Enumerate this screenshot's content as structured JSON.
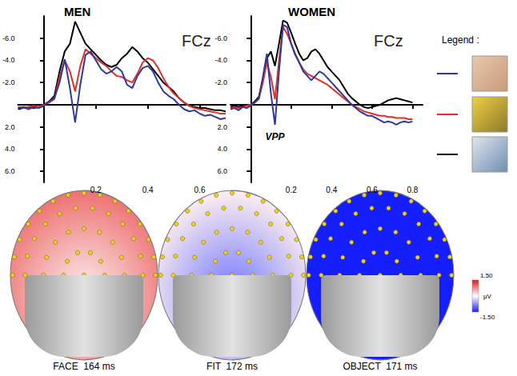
{
  "chart_data": [
    {
      "type": "line",
      "title": "MEN",
      "subtitle": "FCz",
      "x": [
        -0.1,
        -0.08,
        -0.06,
        -0.04,
        -0.02,
        0,
        0.02,
        0.04,
        0.06,
        0.08,
        0.1,
        0.12,
        0.14,
        0.16,
        0.18,
        0.2,
        0.22,
        0.24,
        0.26,
        0.28,
        0.3,
        0.32,
        0.34,
        0.36,
        0.38,
        0.4,
        0.42,
        0.44,
        0.46,
        0.48,
        0.5,
        0.52,
        0.54,
        0.56,
        0.58,
        0.6,
        0.62,
        0.64,
        0.66,
        0.68,
        0.7
      ],
      "series": [
        {
          "color": "#2e3a99",
          "values": [
            0.3,
            0.2,
            0.4,
            0.2,
            0.3,
            0.1,
            -0.3,
            -0.6,
            -2.0,
            -4.1,
            -1.5,
            1.6,
            -1.8,
            -4.5,
            -4.8,
            -4.0,
            -3.2,
            -2.8,
            -3.0,
            -3.4,
            -3.0,
            -1.8,
            -1.5,
            -2.6,
            -3.3,
            -3.5,
            -3.0,
            -2.0,
            -1.2,
            -0.8,
            -0.5,
            0.0,
            0.4,
            0.6,
            0.5,
            0.8,
            1.0,
            0.9,
            1.1,
            1.3,
            1.2
          ]
        },
        {
          "color": "#e0302a",
          "values": [
            0.2,
            0.3,
            0.2,
            0.1,
            0.2,
            0.0,
            -0.2,
            -0.5,
            -2.5,
            -4.0,
            -3.0,
            -1.2,
            -3.5,
            -5.0,
            -4.6,
            -4.2,
            -3.8,
            -3.5,
            -3.0,
            -2.6,
            -2.5,
            -2.2,
            -2.0,
            -2.8,
            -3.8,
            -4.2,
            -4.0,
            -3.3,
            -2.4,
            -1.6,
            -1.0,
            -0.6,
            -0.2,
            0.1,
            0.3,
            0.4,
            0.5,
            0.6,
            0.7,
            0.8,
            0.8
          ]
        },
        {
          "color": "#000000",
          "values": [
            0.4,
            0.3,
            0.2,
            0.3,
            0.2,
            0.0,
            -0.3,
            -0.8,
            -3.0,
            -4.8,
            -5.5,
            -7.5,
            -6.5,
            -5.5,
            -5.0,
            -4.5,
            -4.0,
            -3.6,
            -3.4,
            -3.6,
            -4.2,
            -4.6,
            -5.2,
            -4.8,
            -4.2,
            -3.8,
            -3.2,
            -2.6,
            -2.0,
            -1.6,
            -1.2,
            -0.6,
            -0.2,
            0.1,
            0.2,
            0.3,
            0.3,
            0.4,
            0.5,
            0.5,
            0.6
          ]
        }
      ],
      "xlim": [
        -0.1,
        0.7
      ],
      "xticks": [
        0.2,
        0.4,
        0.6
      ],
      "ylim": [
        -8,
        7
      ],
      "yticks": [
        {
          "value": -6,
          "label": "-6.0"
        },
        {
          "value": -4,
          "label": "-4.0"
        },
        {
          "value": -2,
          "label": "-2.0"
        },
        {
          "value": 2,
          "label": "2.0"
        },
        {
          "value": 4,
          "label": "4.0"
        },
        {
          "value": 6,
          "label": "6.0"
        }
      ],
      "grid": false
    },
    {
      "type": "line",
      "title": "WOMEN",
      "subtitle": "FCz",
      "x": [
        -0.1,
        -0.08,
        -0.06,
        -0.04,
        -0.02,
        0,
        0.02,
        0.04,
        0.06,
        0.08,
        0.1,
        0.12,
        0.14,
        0.16,
        0.18,
        0.2,
        0.22,
        0.24,
        0.26,
        0.28,
        0.3,
        0.32,
        0.34,
        0.36,
        0.38,
        0.4,
        0.42,
        0.44,
        0.46,
        0.48,
        0.5,
        0.52,
        0.54,
        0.56,
        0.58,
        0.6,
        0.62,
        0.64,
        0.66,
        0.68,
        0.7,
        0.72,
        0.74,
        0.76,
        0.78,
        0.8
      ],
      "series": [
        {
          "color": "#2e3a99",
          "values": [
            0.4,
            0.3,
            0.5,
            0.2,
            0.3,
            0.1,
            -0.2,
            -0.6,
            -2.5,
            -4.6,
            -1.0,
            1.8,
            -3.0,
            -7.2,
            -7.0,
            -5.5,
            -4.5,
            -3.8,
            -3.0,
            -2.6,
            -2.2,
            -2.6,
            -3.0,
            -2.8,
            -2.4,
            -2.0,
            -1.6,
            -1.2,
            -0.8,
            -0.4,
            0.0,
            0.3,
            0.6,
            0.8,
            1.0,
            1.0,
            1.2,
            1.4,
            1.6,
            1.5,
            1.6,
            1.8,
            1.6,
            1.5,
            1.6,
            1.5
          ]
        },
        {
          "color": "#e0302a",
          "values": [
            0.3,
            0.2,
            0.3,
            0.2,
            0.1,
            0.0,
            -0.2,
            -0.5,
            -2.0,
            -3.8,
            -2.5,
            -0.5,
            -4.0,
            -7.0,
            -6.4,
            -5.5,
            -4.6,
            -3.8,
            -3.2,
            -2.8,
            -2.6,
            -2.4,
            -2.2,
            -2.0,
            -1.8,
            -1.5,
            -1.2,
            -0.9,
            -0.6,
            -0.3,
            0.0,
            0.2,
            0.4,
            0.6,
            0.7,
            0.8,
            0.9,
            1.0,
            1.0,
            1.1,
            1.1,
            1.2,
            1.2,
            1.2,
            1.3,
            1.3
          ]
        },
        {
          "color": "#000000",
          "values": [
            0.2,
            0.1,
            0.2,
            0.1,
            0.1,
            0.0,
            -0.3,
            -0.7,
            -2.2,
            -4.2,
            -4.8,
            -3.5,
            -5.5,
            -7.6,
            -7.4,
            -6.5,
            -5.5,
            -4.6,
            -4.0,
            -4.2,
            -4.8,
            -5.0,
            -4.6,
            -4.0,
            -3.4,
            -3.0,
            -2.6,
            -2.2,
            -1.6,
            -1.0,
            -0.6,
            -0.3,
            0.0,
            0.2,
            0.3,
            0.2,
            0.1,
            0.0,
            -0.2,
            -0.4,
            -0.5,
            -0.6,
            -0.5,
            -0.4,
            -0.3,
            -0.2
          ]
        }
      ],
      "xlim": [
        -0.1,
        0.85
      ],
      "xticks": [
        0.2,
        0.4,
        0.6,
        0.8
      ],
      "ylim": [
        -8,
        7
      ],
      "yticks": [
        {
          "value": -6,
          "label": "-6.0"
        },
        {
          "value": -4,
          "label": "-4.0"
        },
        {
          "value": -2,
          "label": "-2.0"
        },
        {
          "value": 2,
          "label": "2.0"
        },
        {
          "value": 4,
          "label": "4.0"
        },
        {
          "value": 6,
          "label": "6.0"
        }
      ],
      "grid": false,
      "annotations": [
        {
          "text": "VPP",
          "x": 0.12,
          "y": 2.9
        }
      ]
    }
  ],
  "legend_label": "Legend :",
  "topomaps": [
    {
      "label": "FACE",
      "latency": "164 ms",
      "center": 0.1,
      "periphery": 0.9
    },
    {
      "label": "FIT",
      "latency": "172 ms",
      "center": -0.9,
      "periphery": 0.1
    },
    {
      "label": "OBJECT",
      "latency": "171 ms",
      "center": -1.5,
      "periphery": -1.5
    }
  ],
  "colorbar": {
    "range": [
      -1.5,
      1.5
    ],
    "ticks": [
      {
        "value": 1.5,
        "label": "1.50"
      },
      {
        "value": -1.5,
        "label": "-1.50"
      }
    ],
    "unit": "µV"
  }
}
